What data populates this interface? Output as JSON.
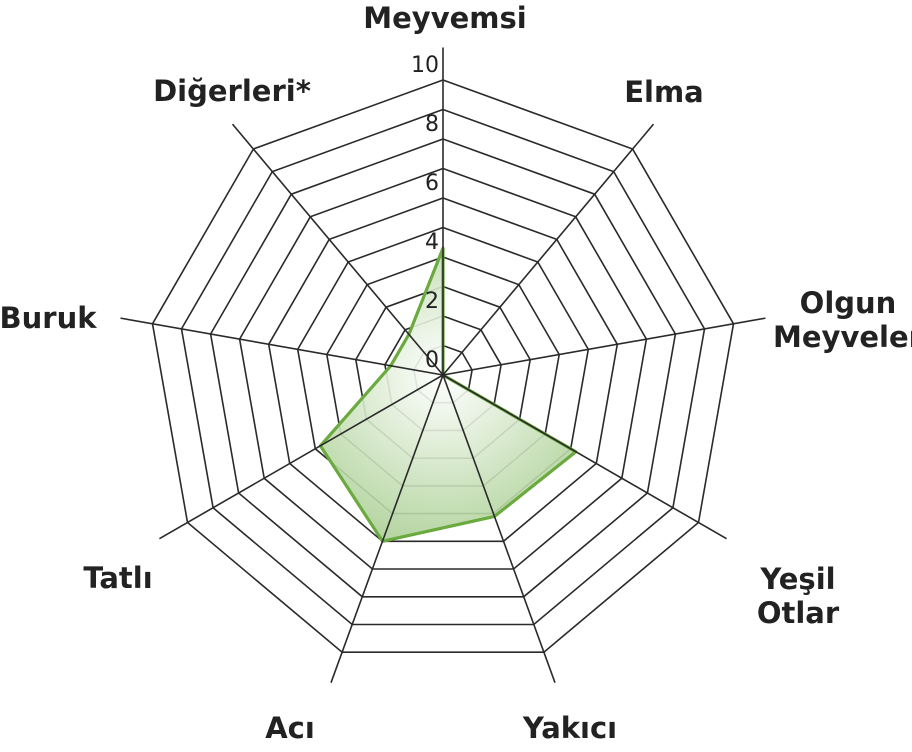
{
  "colors": {
    "grid": "#2a2a2a",
    "series_stroke": "#6aaa3e",
    "series_fill_center": "#ffffff",
    "series_fill_edge": "#9fc985",
    "text": "#222222"
  },
  "chart_data": {
    "type": "radar",
    "axes": [
      {
        "label": [
          "Meyvemsi"
        ]
      },
      {
        "label": [
          "Elma"
        ]
      },
      {
        "label": [
          "Olgun",
          "Meyveler"
        ]
      },
      {
        "label": [
          "Yeşil",
          "Otlar"
        ]
      },
      {
        "label": [
          "Yakıcı"
        ]
      },
      {
        "label": [
          "Acı"
        ]
      },
      {
        "label": [
          "Tatlı"
        ]
      },
      {
        "label": [
          "Buruk"
        ]
      },
      {
        "label": [
          "Diğerleri*"
        ]
      }
    ],
    "range": [
      0,
      10
    ],
    "ticks": [
      0,
      2,
      4,
      6,
      8,
      10
    ],
    "tick_labels": [
      "0",
      "2",
      "4",
      "6",
      "8",
      "10"
    ],
    "series": [
      {
        "values": [
          4.3,
          0.0,
          0.0,
          5.2,
          5.1,
          6.0,
          4.8,
          1.8,
          1.8
        ]
      }
    ]
  }
}
